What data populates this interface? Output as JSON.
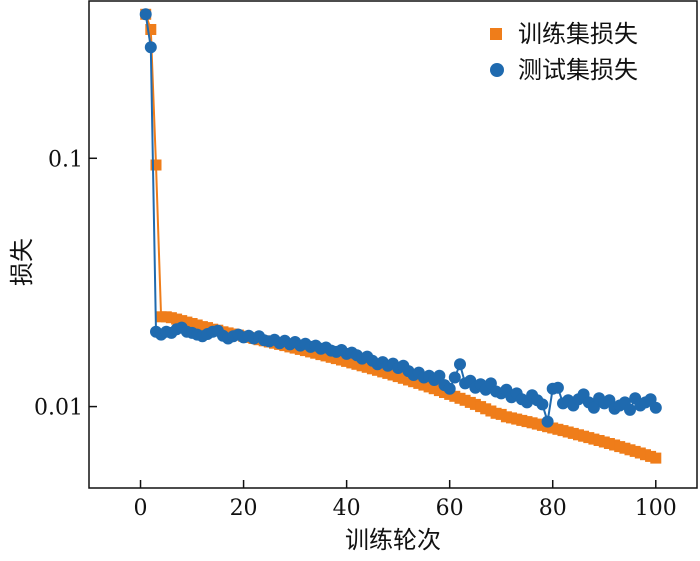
{
  "chart_data": {
    "type": "line",
    "xlabel": "训练轮次",
    "ylabel": "损失",
    "xlim": [
      -10,
      108
    ],
    "ylim": [
      0.0047,
      0.43
    ],
    "yscale": "log",
    "x_ticks": [
      0,
      20,
      40,
      60,
      80,
      100
    ],
    "y_ticks": [
      0.01,
      0.1
    ],
    "y_tick_labels": [
      "0.01",
      "0.1"
    ],
    "legend_position": "top-right",
    "grid": false,
    "series": [
      {
        "name": "训练集损失",
        "color": "#ef7d1a",
        "marker": "square",
        "x": [
          1,
          2,
          3,
          4,
          5,
          6,
          7,
          8,
          9,
          10,
          11,
          12,
          13,
          14,
          15,
          16,
          17,
          18,
          19,
          20,
          21,
          22,
          23,
          24,
          25,
          26,
          27,
          28,
          29,
          30,
          31,
          32,
          33,
          34,
          35,
          36,
          37,
          38,
          39,
          40,
          41,
          42,
          43,
          44,
          45,
          46,
          47,
          48,
          49,
          50,
          51,
          52,
          53,
          54,
          55,
          56,
          57,
          58,
          59,
          60,
          61,
          62,
          63,
          64,
          65,
          66,
          67,
          68,
          69,
          70,
          71,
          72,
          73,
          74,
          75,
          76,
          77,
          78,
          79,
          80,
          81,
          82,
          83,
          84,
          85,
          86,
          87,
          88,
          89,
          90,
          91,
          92,
          93,
          94,
          95,
          96,
          97,
          98,
          99,
          100
        ],
        "values": [
          0.38,
          0.33,
          0.094,
          0.023,
          0.023,
          0.0228,
          0.0225,
          0.0222,
          0.0219,
          0.0216,
          0.0213,
          0.021,
          0.0208,
          0.0205,
          0.0203,
          0.02,
          0.0198,
          0.0196,
          0.0194,
          0.0192,
          0.019,
          0.0188,
          0.0186,
          0.0184,
          0.0182,
          0.018,
          0.0178,
          0.0176,
          0.0174,
          0.0172,
          0.017,
          0.0168,
          0.0166,
          0.0164,
          0.0162,
          0.016,
          0.0158,
          0.0156,
          0.0154,
          0.0152,
          0.015,
          0.0148,
          0.0146,
          0.0144,
          0.0142,
          0.014,
          0.0138,
          0.0136,
          0.0134,
          0.0132,
          0.013,
          0.0128,
          0.0126,
          0.0124,
          0.0122,
          0.012,
          0.0118,
          0.0116,
          0.0114,
          0.0112,
          0.011,
          0.0108,
          0.0106,
          0.0104,
          0.0102,
          0.01,
          0.0098,
          0.0096,
          0.0094,
          0.0093,
          0.0091,
          0.009,
          0.0089,
          0.0088,
          0.0087,
          0.0086,
          0.0085,
          0.0084,
          0.0083,
          0.0082,
          0.0081,
          0.008,
          0.0079,
          0.0078,
          0.0077,
          0.0076,
          0.0075,
          0.0074,
          0.0073,
          0.0072,
          0.0071,
          0.007,
          0.0069,
          0.0068,
          0.0067,
          0.0066,
          0.0065,
          0.0064,
          0.0063,
          0.0062
        ]
      },
      {
        "name": "测试集损失",
        "color": "#1f6aaf",
        "marker": "circle",
        "x": [
          1,
          2,
          3,
          4,
          5,
          6,
          7,
          8,
          9,
          10,
          11,
          12,
          13,
          14,
          15,
          16,
          17,
          18,
          19,
          20,
          21,
          22,
          23,
          24,
          25,
          26,
          27,
          28,
          29,
          30,
          31,
          32,
          33,
          34,
          35,
          36,
          37,
          38,
          39,
          40,
          41,
          42,
          43,
          44,
          45,
          46,
          47,
          48,
          49,
          50,
          51,
          52,
          53,
          54,
          55,
          56,
          57,
          58,
          59,
          60,
          61,
          62,
          63,
          64,
          65,
          66,
          67,
          68,
          69,
          70,
          71,
          72,
          73,
          74,
          75,
          76,
          77,
          78,
          79,
          80,
          81,
          82,
          83,
          84,
          85,
          86,
          87,
          88,
          89,
          90,
          91,
          92,
          93,
          94,
          95,
          96,
          97,
          98,
          99,
          100
        ],
        "values": [
          0.38,
          0.28,
          0.02,
          0.0195,
          0.02,
          0.0198,
          0.0205,
          0.0208,
          0.02,
          0.0198,
          0.0195,
          0.0192,
          0.0196,
          0.02,
          0.0202,
          0.0193,
          0.0188,
          0.0192,
          0.0195,
          0.019,
          0.0193,
          0.0188,
          0.0192,
          0.0185,
          0.0183,
          0.0186,
          0.018,
          0.0184,
          0.0178,
          0.0182,
          0.0176,
          0.0179,
          0.0174,
          0.0176,
          0.0171,
          0.0173,
          0.0168,
          0.0166,
          0.0169,
          0.0163,
          0.0165,
          0.0161,
          0.0156,
          0.0159,
          0.0153,
          0.0148,
          0.0151,
          0.0146,
          0.0149,
          0.0143,
          0.0146,
          0.0139,
          0.0134,
          0.0137,
          0.0131,
          0.0133,
          0.0128,
          0.0133,
          0.0122,
          0.0118,
          0.0131,
          0.0148,
          0.0124,
          0.0127,
          0.0119,
          0.0123,
          0.0117,
          0.0124,
          0.0115,
          0.0113,
          0.0117,
          0.0109,
          0.0113,
          0.0107,
          0.0104,
          0.0111,
          0.0106,
          0.0102,
          0.0087,
          0.0118,
          0.0119,
          0.0103,
          0.0106,
          0.0101,
          0.0107,
          0.0112,
          0.0104,
          0.0099,
          0.0108,
          0.0103,
          0.0106,
          0.0098,
          0.0101,
          0.0104,
          0.0097,
          0.0108,
          0.0101,
          0.0104,
          0.0107,
          0.0099
        ]
      }
    ]
  }
}
